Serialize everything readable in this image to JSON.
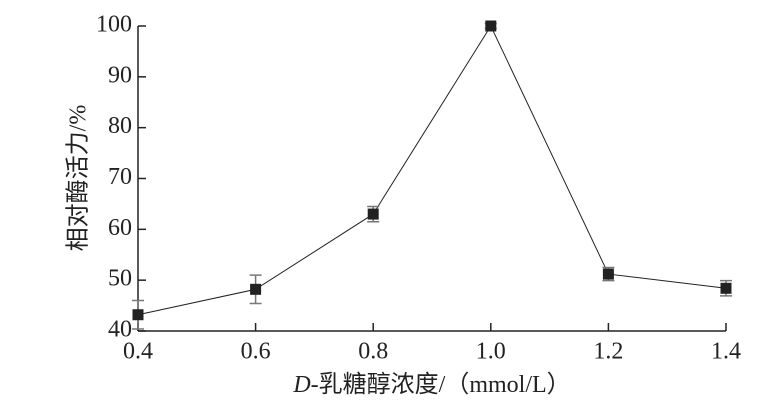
{
  "chart_data": {
    "type": "line",
    "xlabel_italic": "D",
    "xlabel": "-乳糖醇浓度/（mmol/L）",
    "ylabel": "相对酶活力/%",
    "x": [
      0.4,
      0.6,
      0.8,
      1.0,
      1.2,
      1.4
    ],
    "series": [
      {
        "color": "#222222",
        "values": [
          43.2,
          48.2,
          63.0,
          100.0,
          51.2,
          48.4
        ],
        "errors": [
          2.8,
          2.8,
          1.5,
          0.5,
          1.3,
          1.5
        ]
      }
    ],
    "xlim": [
      0.4,
      1.4
    ],
    "xticks": [
      0.4,
      0.6,
      0.8,
      {
        "value": 1.0,
        "label": "1.0"
      },
      1.2,
      1.4
    ],
    "ylim": [
      40,
      100
    ],
    "yticks": [
      40,
      50,
      60,
      70,
      80,
      90,
      100
    ]
  }
}
